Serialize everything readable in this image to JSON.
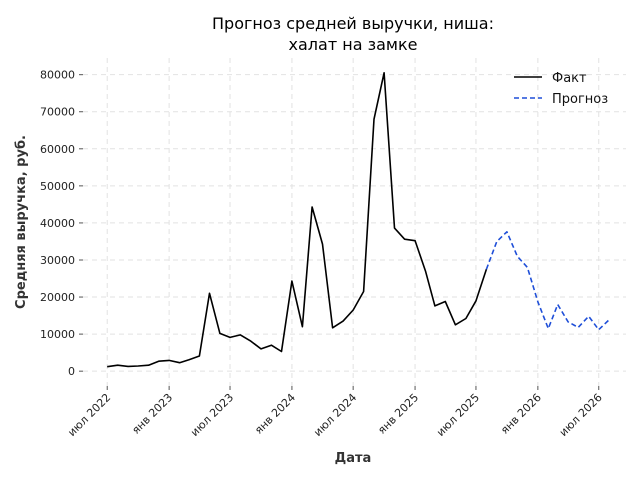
{
  "chart_data": {
    "type": "line",
    "title": [
      "Прогноз средней выручки, ниша:",
      "халат на замке"
    ],
    "xlabel": "Дата",
    "ylabel": "Средняя выручка, руб.",
    "ylim": [
      -4000,
      84500
    ],
    "xlim": [
      "2022-04-20",
      "2026-09-20"
    ],
    "grid": true,
    "legend_position": "top-right",
    "x_ticks": [
      {
        "date": "2022-07-01",
        "label": "июл 2022"
      },
      {
        "date": "2023-01-01",
        "label": "янв 2023"
      },
      {
        "date": "2023-07-01",
        "label": "июл 2023"
      },
      {
        "date": "2024-01-01",
        "label": "янв 2024"
      },
      {
        "date": "2024-07-01",
        "label": "июл 2024"
      },
      {
        "date": "2025-01-01",
        "label": "янв 2025"
      },
      {
        "date": "2025-07-01",
        "label": "июл 2025"
      },
      {
        "date": "2026-01-01",
        "label": "янв 2026"
      },
      {
        "date": "2026-07-01",
        "label": "июл 2026"
      }
    ],
    "y_ticks": [
      0,
      10000,
      20000,
      30000,
      40000,
      50000,
      60000,
      70000,
      80000
    ],
    "series": [
      {
        "name": "Факт",
        "color": "#000000",
        "style": "solid",
        "points": [
          [
            "2022-07-01",
            1200
          ],
          [
            "2022-08-01",
            1600
          ],
          [
            "2022-09-01",
            1300
          ],
          [
            "2022-10-01",
            1400
          ],
          [
            "2022-11-01",
            1600
          ],
          [
            "2022-12-01",
            2700
          ],
          [
            "2023-01-01",
            2900
          ],
          [
            "2023-02-01",
            2300
          ],
          [
            "2023-03-01",
            3100
          ],
          [
            "2023-04-01",
            4100
          ],
          [
            "2023-05-01",
            21000
          ],
          [
            "2023-06-01",
            10200
          ],
          [
            "2023-07-01",
            9100
          ],
          [
            "2023-08-01",
            9800
          ],
          [
            "2023-09-01",
            8100
          ],
          [
            "2023-10-01",
            6000
          ],
          [
            "2023-11-01",
            7000
          ],
          [
            "2023-12-01",
            5300
          ],
          [
            "2024-01-01",
            24300
          ],
          [
            "2024-02-01",
            12000
          ],
          [
            "2024-03-01",
            44300
          ],
          [
            "2024-04-01",
            34300
          ],
          [
            "2024-05-01",
            11700
          ],
          [
            "2024-06-01",
            13500
          ],
          [
            "2024-07-01",
            16500
          ],
          [
            "2024-08-01",
            21500
          ],
          [
            "2024-09-01",
            68000
          ],
          [
            "2024-10-01",
            80500
          ],
          [
            "2024-11-01",
            38600
          ],
          [
            "2024-12-01",
            35600
          ],
          [
            "2025-01-01",
            35200
          ],
          [
            "2025-02-01",
            27000
          ],
          [
            "2025-03-01",
            17600
          ],
          [
            "2025-04-01",
            18800
          ],
          [
            "2025-05-01",
            12500
          ],
          [
            "2025-06-01",
            14200
          ],
          [
            "2025-07-01",
            19000
          ],
          [
            "2025-08-01",
            27500
          ]
        ]
      },
      {
        "name": "Прогноз",
        "color": "#1f4fd8",
        "style": "dashed",
        "points": [
          [
            "2025-08-01",
            27500
          ],
          [
            "2025-09-01",
            35000
          ],
          [
            "2025-10-01",
            37600
          ],
          [
            "2025-11-01",
            31000
          ],
          [
            "2025-12-01",
            28000
          ],
          [
            "2026-01-01",
            18700
          ],
          [
            "2026-02-01",
            11500
          ],
          [
            "2026-03-01",
            18000
          ],
          [
            "2026-04-01",
            13300
          ],
          [
            "2026-05-01",
            11800
          ],
          [
            "2026-06-01",
            14800
          ],
          [
            "2026-07-01",
            11200
          ],
          [
            "2026-08-01",
            13900
          ]
        ]
      }
    ]
  }
}
